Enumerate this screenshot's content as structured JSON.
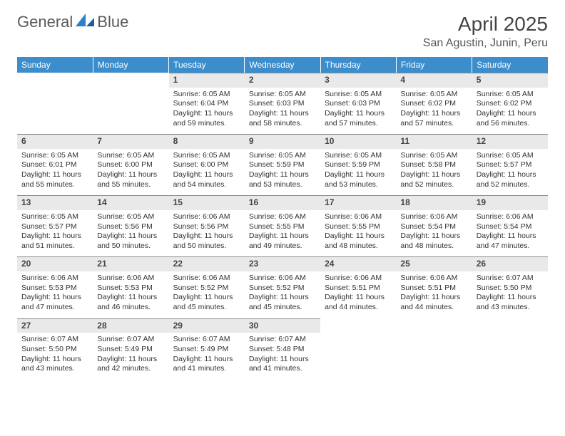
{
  "logo": {
    "part1": "General",
    "part2": "Blue"
  },
  "title": "April 2025",
  "location": "San Agustin, Junin, Peru",
  "colors": {
    "header_bg": "#3c8dcc",
    "header_text": "#ffffff",
    "daynum_bg": "#e9e9e9",
    "daynum_border": "#888888",
    "body_text": "#333333",
    "logo_gray": "#5a5a5a",
    "logo_blue": "#2d7fc9"
  },
  "day_names": [
    "Sunday",
    "Monday",
    "Tuesday",
    "Wednesday",
    "Thursday",
    "Friday",
    "Saturday"
  ],
  "weeks": [
    [
      {
        "n": "",
        "sunrise": "",
        "sunset": "",
        "daylight": ""
      },
      {
        "n": "",
        "sunrise": "",
        "sunset": "",
        "daylight": ""
      },
      {
        "n": "1",
        "sunrise": "Sunrise: 6:05 AM",
        "sunset": "Sunset: 6:04 PM",
        "daylight": "Daylight: 11 hours and 59 minutes."
      },
      {
        "n": "2",
        "sunrise": "Sunrise: 6:05 AM",
        "sunset": "Sunset: 6:03 PM",
        "daylight": "Daylight: 11 hours and 58 minutes."
      },
      {
        "n": "3",
        "sunrise": "Sunrise: 6:05 AM",
        "sunset": "Sunset: 6:03 PM",
        "daylight": "Daylight: 11 hours and 57 minutes."
      },
      {
        "n": "4",
        "sunrise": "Sunrise: 6:05 AM",
        "sunset": "Sunset: 6:02 PM",
        "daylight": "Daylight: 11 hours and 57 minutes."
      },
      {
        "n": "5",
        "sunrise": "Sunrise: 6:05 AM",
        "sunset": "Sunset: 6:02 PM",
        "daylight": "Daylight: 11 hours and 56 minutes."
      }
    ],
    [
      {
        "n": "6",
        "sunrise": "Sunrise: 6:05 AM",
        "sunset": "Sunset: 6:01 PM",
        "daylight": "Daylight: 11 hours and 55 minutes."
      },
      {
        "n": "7",
        "sunrise": "Sunrise: 6:05 AM",
        "sunset": "Sunset: 6:00 PM",
        "daylight": "Daylight: 11 hours and 55 minutes."
      },
      {
        "n": "8",
        "sunrise": "Sunrise: 6:05 AM",
        "sunset": "Sunset: 6:00 PM",
        "daylight": "Daylight: 11 hours and 54 minutes."
      },
      {
        "n": "9",
        "sunrise": "Sunrise: 6:05 AM",
        "sunset": "Sunset: 5:59 PM",
        "daylight": "Daylight: 11 hours and 53 minutes."
      },
      {
        "n": "10",
        "sunrise": "Sunrise: 6:05 AM",
        "sunset": "Sunset: 5:59 PM",
        "daylight": "Daylight: 11 hours and 53 minutes."
      },
      {
        "n": "11",
        "sunrise": "Sunrise: 6:05 AM",
        "sunset": "Sunset: 5:58 PM",
        "daylight": "Daylight: 11 hours and 52 minutes."
      },
      {
        "n": "12",
        "sunrise": "Sunrise: 6:05 AM",
        "sunset": "Sunset: 5:57 PM",
        "daylight": "Daylight: 11 hours and 52 minutes."
      }
    ],
    [
      {
        "n": "13",
        "sunrise": "Sunrise: 6:05 AM",
        "sunset": "Sunset: 5:57 PM",
        "daylight": "Daylight: 11 hours and 51 minutes."
      },
      {
        "n": "14",
        "sunrise": "Sunrise: 6:05 AM",
        "sunset": "Sunset: 5:56 PM",
        "daylight": "Daylight: 11 hours and 50 minutes."
      },
      {
        "n": "15",
        "sunrise": "Sunrise: 6:06 AM",
        "sunset": "Sunset: 5:56 PM",
        "daylight": "Daylight: 11 hours and 50 minutes."
      },
      {
        "n": "16",
        "sunrise": "Sunrise: 6:06 AM",
        "sunset": "Sunset: 5:55 PM",
        "daylight": "Daylight: 11 hours and 49 minutes."
      },
      {
        "n": "17",
        "sunrise": "Sunrise: 6:06 AM",
        "sunset": "Sunset: 5:55 PM",
        "daylight": "Daylight: 11 hours and 48 minutes."
      },
      {
        "n": "18",
        "sunrise": "Sunrise: 6:06 AM",
        "sunset": "Sunset: 5:54 PM",
        "daylight": "Daylight: 11 hours and 48 minutes."
      },
      {
        "n": "19",
        "sunrise": "Sunrise: 6:06 AM",
        "sunset": "Sunset: 5:54 PM",
        "daylight": "Daylight: 11 hours and 47 minutes."
      }
    ],
    [
      {
        "n": "20",
        "sunrise": "Sunrise: 6:06 AM",
        "sunset": "Sunset: 5:53 PM",
        "daylight": "Daylight: 11 hours and 47 minutes."
      },
      {
        "n": "21",
        "sunrise": "Sunrise: 6:06 AM",
        "sunset": "Sunset: 5:53 PM",
        "daylight": "Daylight: 11 hours and 46 minutes."
      },
      {
        "n": "22",
        "sunrise": "Sunrise: 6:06 AM",
        "sunset": "Sunset: 5:52 PM",
        "daylight": "Daylight: 11 hours and 45 minutes."
      },
      {
        "n": "23",
        "sunrise": "Sunrise: 6:06 AM",
        "sunset": "Sunset: 5:52 PM",
        "daylight": "Daylight: 11 hours and 45 minutes."
      },
      {
        "n": "24",
        "sunrise": "Sunrise: 6:06 AM",
        "sunset": "Sunset: 5:51 PM",
        "daylight": "Daylight: 11 hours and 44 minutes."
      },
      {
        "n": "25",
        "sunrise": "Sunrise: 6:06 AM",
        "sunset": "Sunset: 5:51 PM",
        "daylight": "Daylight: 11 hours and 44 minutes."
      },
      {
        "n": "26",
        "sunrise": "Sunrise: 6:07 AM",
        "sunset": "Sunset: 5:50 PM",
        "daylight": "Daylight: 11 hours and 43 minutes."
      }
    ],
    [
      {
        "n": "27",
        "sunrise": "Sunrise: 6:07 AM",
        "sunset": "Sunset: 5:50 PM",
        "daylight": "Daylight: 11 hours and 43 minutes."
      },
      {
        "n": "28",
        "sunrise": "Sunrise: 6:07 AM",
        "sunset": "Sunset: 5:49 PM",
        "daylight": "Daylight: 11 hours and 42 minutes."
      },
      {
        "n": "29",
        "sunrise": "Sunrise: 6:07 AM",
        "sunset": "Sunset: 5:49 PM",
        "daylight": "Daylight: 11 hours and 41 minutes."
      },
      {
        "n": "30",
        "sunrise": "Sunrise: 6:07 AM",
        "sunset": "Sunset: 5:48 PM",
        "daylight": "Daylight: 11 hours and 41 minutes."
      },
      {
        "n": "",
        "sunrise": "",
        "sunset": "",
        "daylight": ""
      },
      {
        "n": "",
        "sunrise": "",
        "sunset": "",
        "daylight": ""
      },
      {
        "n": "",
        "sunrise": "",
        "sunset": "",
        "daylight": ""
      }
    ]
  ]
}
